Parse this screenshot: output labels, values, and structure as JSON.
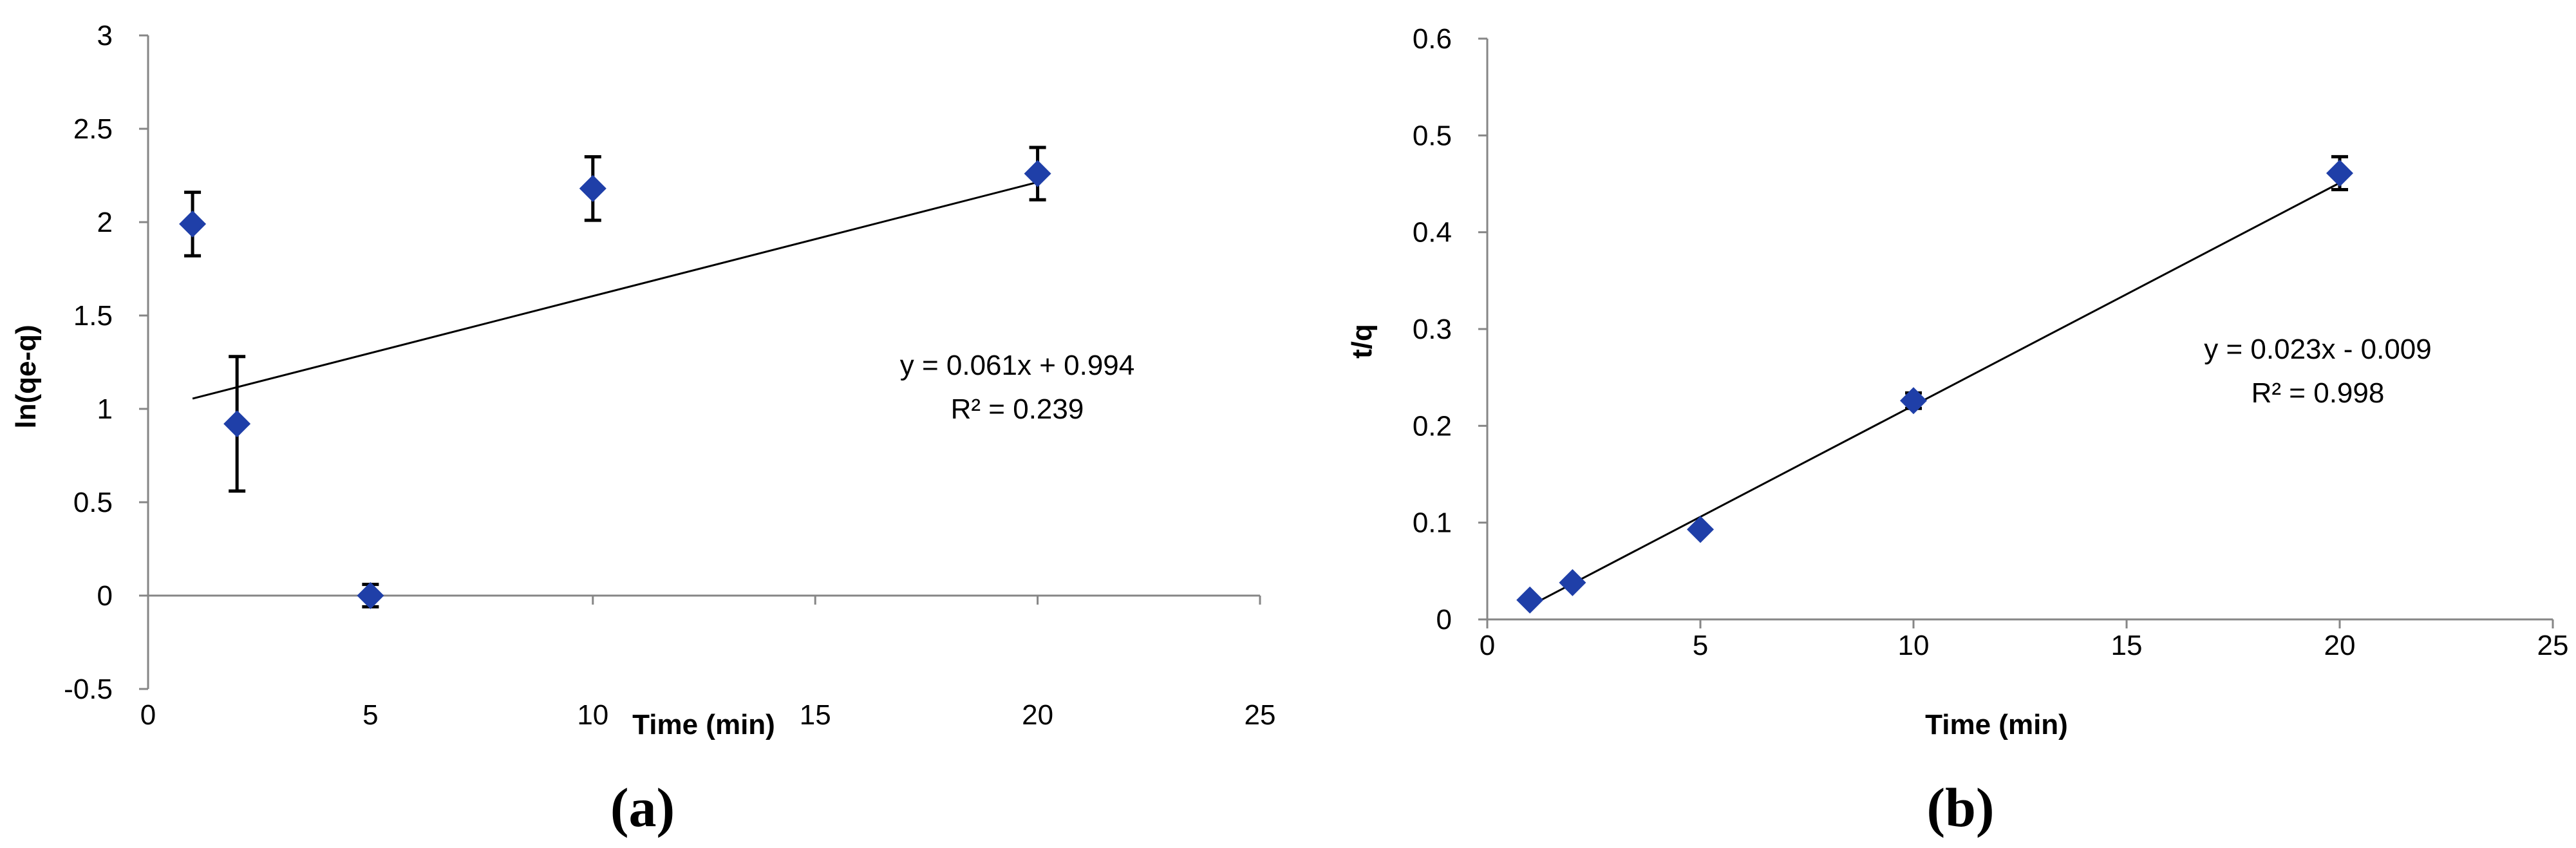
{
  "chart_data": [
    {
      "type": "scatter",
      "panel_label": "(a)",
      "xlabel": "Time (min)",
      "ylabel": "ln(qe-q)",
      "xlim": [
        0,
        25
      ],
      "ylim": [
        -0.5,
        3
      ],
      "xticks": [
        0,
        5,
        10,
        15,
        20,
        25
      ],
      "yticks": [
        -0.5,
        0,
        0.5,
        1,
        1.5,
        2,
        2.5,
        3
      ],
      "grid": false,
      "marker_color": "#1F3FA8",
      "points": [
        {
          "x": 1,
          "y": 1.99,
          "err": 0.17
        },
        {
          "x": 2,
          "y": 0.92,
          "err": 0.36
        },
        {
          "x": 5,
          "y": 0.0,
          "err": 0.06
        },
        {
          "x": 10,
          "y": 2.18,
          "err": 0.17
        },
        {
          "x": 20,
          "y": 2.26,
          "err": 0.14
        }
      ],
      "trendline": {
        "slope": 0.061,
        "intercept": 0.994,
        "x_range": [
          1,
          20
        ]
      },
      "equation": "y = 0.061x + 0.994",
      "r_squared": "R² = 0.239"
    },
    {
      "type": "scatter",
      "panel_label": "(b)",
      "xlabel": "Time (min)",
      "ylabel": "t/q",
      "xlim": [
        0,
        25
      ],
      "ylim": [
        0,
        0.6
      ],
      "xticks": [
        0,
        5,
        10,
        15,
        20,
        25
      ],
      "yticks": [
        0,
        0.1,
        0.2,
        0.3,
        0.4,
        0.5,
        0.6
      ],
      "grid": false,
      "marker_color": "#1F3FA8",
      "points": [
        {
          "x": 1,
          "y": 0.02,
          "err": 0
        },
        {
          "x": 2,
          "y": 0.038,
          "err": 0
        },
        {
          "x": 5,
          "y": 0.093,
          "err": 0
        },
        {
          "x": 10,
          "y": 0.226,
          "err": 0.008
        },
        {
          "x": 20,
          "y": 0.461,
          "err": 0.017
        }
      ],
      "trendline": {
        "slope": 0.023,
        "intercept": -0.009,
        "x_range": [
          1,
          20
        ]
      },
      "equation": "y = 0.023x - 0.009",
      "r_squared": "R² = 0.998"
    }
  ]
}
